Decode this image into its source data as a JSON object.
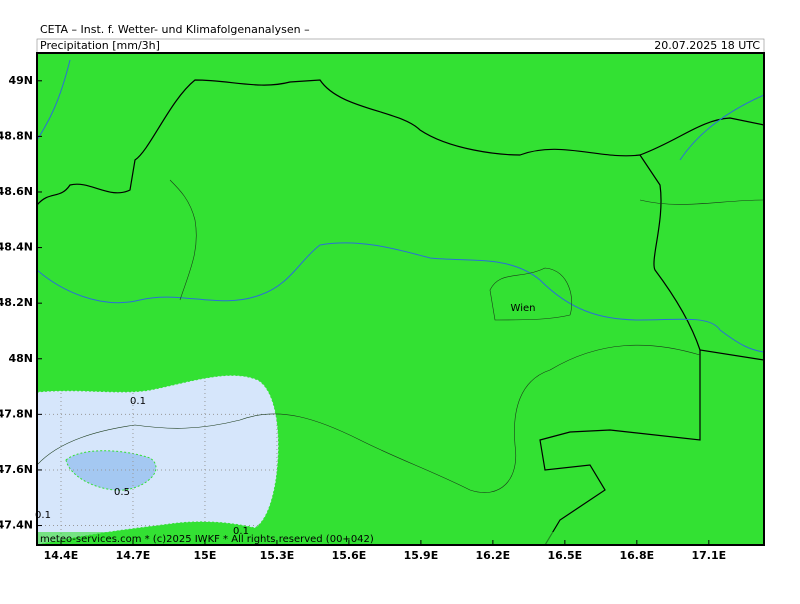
{
  "header": {
    "title": "CETA – Inst. f. Wetter- und Klimafolgenanalysen –",
    "field": "Precipitation [mm/3h]",
    "valid_time": "20.07.2025 18 UTC"
  },
  "chart_data": {
    "type": "map",
    "xlim": [
      14.3,
      17.33
    ],
    "ylim": [
      47.33,
      49.1
    ],
    "xticks": [
      {
        "value": 14.4,
        "label": "14.4E"
      },
      {
        "value": 14.7,
        "label": "14.7E"
      },
      {
        "value": 15,
        "label": "15E"
      },
      {
        "value": 15.3,
        "label": "15.3E"
      },
      {
        "value": 15.6,
        "label": "15.6E"
      },
      {
        "value": 15.9,
        "label": "15.9E"
      },
      {
        "value": 16.2,
        "label": "16.2E"
      },
      {
        "value": 16.5,
        "label": "16.5E"
      },
      {
        "value": 16.8,
        "label": "16.8E"
      },
      {
        "value": 17.1,
        "label": "17.1E"
      }
    ],
    "yticks": [
      {
        "value": 47.4,
        "label": "47.4N"
      },
      {
        "value": 47.6,
        "label": "47.6N"
      },
      {
        "value": 47.8,
        "label": "47.8N"
      },
      {
        "value": 48,
        "label": "48N"
      },
      {
        "value": 48.2,
        "label": "48.2N"
      },
      {
        "value": 48.4,
        "label": "48.4N"
      },
      {
        "value": 48.6,
        "label": "48.6N"
      },
      {
        "value": 48.8,
        "label": "48.8N"
      },
      {
        "value": 49,
        "label": "49N"
      }
    ],
    "contour_labels": [
      0.1,
      0.5,
      0.1,
      0.1
    ],
    "city": "Wien"
  },
  "footer": "meteo-services.com * (c)2025 IWKF * All rights reserved (00+042)"
}
